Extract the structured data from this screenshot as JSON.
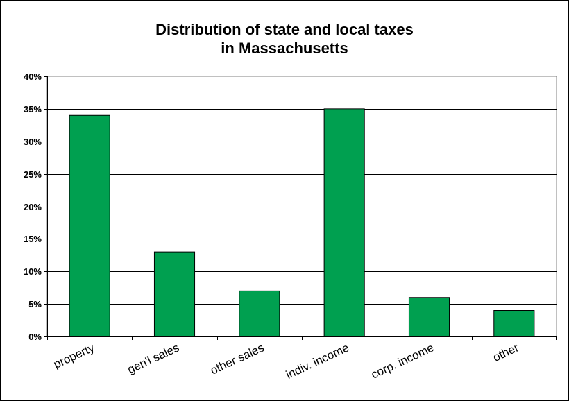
{
  "chart_data": {
    "type": "bar",
    "title_lines": [
      "Distribution of state and local taxes",
      "in Massachusetts"
    ],
    "xlabel": "",
    "ylabel": "",
    "categories": [
      "property",
      "gen'l sales",
      "other sales",
      "indiv. income",
      "corp. income",
      "other"
    ],
    "values": [
      34,
      13,
      7,
      35,
      6,
      4
    ],
    "ylim": [
      0,
      40
    ],
    "ytick_values": [
      0,
      5,
      10,
      15,
      20,
      25,
      30,
      35,
      40
    ],
    "ytick_labels": [
      "0%",
      "5%",
      "10%",
      "15%",
      "20%",
      "25%",
      "30%",
      "35%",
      "40%"
    ],
    "grid": true,
    "legend": "none",
    "bar_color": "#00a050"
  }
}
